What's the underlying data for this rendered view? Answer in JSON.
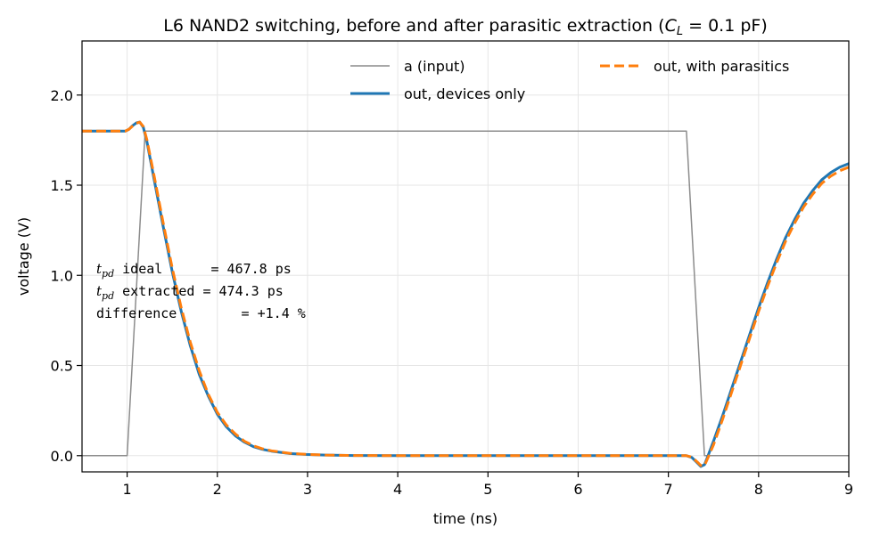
{
  "chart_data": {
    "type": "line",
    "title_main": "L6  NAND2 switching, before and after parasitic extraction (",
    "title_var": "C",
    "title_sub": "L",
    "title_tail": " = 0.1 pF)",
    "xlabel": "time (ns)",
    "ylabel": "voltage (V)",
    "xlim": [
      0.5,
      9
    ],
    "ylim": [
      -0.09,
      2.3
    ],
    "xticks": [
      1,
      2,
      3,
      4,
      5,
      6,
      7,
      8,
      9
    ],
    "yticks": [
      0.0,
      0.5,
      1.0,
      1.5,
      2.0
    ],
    "xtick_labels": [
      "1",
      "2",
      "3",
      "4",
      "5",
      "6",
      "7",
      "8",
      "9"
    ],
    "ytick_labels": [
      "0.0",
      "0.5",
      "1.0",
      "1.5",
      "2.0"
    ],
    "grid": true,
    "legend_position": "top-center",
    "series": [
      {
        "name": "a (input)",
        "color": "#8c8c8c",
        "style": "solid",
        "x": [
          0.5,
          1.0,
          1.2,
          7.2,
          7.4,
          9.0
        ],
        "y": [
          0.0,
          0.0,
          1.8,
          1.8,
          0.0,
          0.0
        ]
      },
      {
        "name": "out, devices only",
        "color": "#1f77b4",
        "style": "solid",
        "x": [
          0.5,
          0.98,
          1.02,
          1.06,
          1.1,
          1.14,
          1.18,
          1.22,
          1.3,
          1.4,
          1.5,
          1.6,
          1.7,
          1.8,
          1.9,
          2.0,
          2.1,
          2.2,
          2.3,
          2.4,
          2.5,
          2.6,
          2.8,
          3.0,
          3.2,
          3.5,
          4.0,
          5.0,
          6.0,
          7.0,
          7.2,
          7.26,
          7.32,
          7.36,
          7.4,
          7.44,
          7.5,
          7.6,
          7.7,
          7.8,
          7.9,
          8.0,
          8.1,
          8.2,
          8.3,
          8.4,
          8.5,
          8.6,
          8.7,
          8.8,
          8.9,
          9.0
        ],
        "y": [
          1.8,
          1.8,
          1.81,
          1.83,
          1.845,
          1.85,
          1.82,
          1.74,
          1.53,
          1.27,
          1.02,
          0.8,
          0.61,
          0.45,
          0.33,
          0.23,
          0.16,
          0.11,
          0.075,
          0.05,
          0.035,
          0.025,
          0.012,
          0.006,
          0.003,
          0.001,
          0.0,
          0.0,
          0.0,
          0.0,
          0.0,
          -0.01,
          -0.04,
          -0.06,
          -0.05,
          0.0,
          0.08,
          0.22,
          0.37,
          0.52,
          0.67,
          0.82,
          0.96,
          1.09,
          1.21,
          1.31,
          1.4,
          1.47,
          1.53,
          1.57,
          1.6,
          1.62
        ]
      },
      {
        "name": "out, with parasitics",
        "color": "#ff7f0e",
        "style": "dashed",
        "x": [
          0.5,
          0.98,
          1.02,
          1.06,
          1.1,
          1.14,
          1.18,
          1.22,
          1.3,
          1.4,
          1.5,
          1.6,
          1.7,
          1.8,
          1.9,
          2.0,
          2.1,
          2.2,
          2.3,
          2.4,
          2.5,
          2.6,
          2.8,
          3.0,
          3.2,
          3.5,
          4.0,
          5.0,
          6.0,
          7.0,
          7.2,
          7.26,
          7.32,
          7.36,
          7.4,
          7.44,
          7.5,
          7.6,
          7.7,
          7.8,
          7.9,
          8.0,
          8.1,
          8.2,
          8.3,
          8.4,
          8.5,
          8.6,
          8.7,
          8.8,
          8.9,
          9.0
        ],
        "y": [
          1.8,
          1.8,
          1.81,
          1.828,
          1.843,
          1.85,
          1.825,
          1.75,
          1.55,
          1.29,
          1.04,
          0.82,
          0.63,
          0.47,
          0.34,
          0.24,
          0.17,
          0.12,
          0.08,
          0.055,
          0.038,
          0.027,
          0.013,
          0.007,
          0.003,
          0.001,
          0.0,
          0.0,
          0.0,
          0.0,
          0.0,
          -0.008,
          -0.035,
          -0.055,
          -0.055,
          -0.01,
          0.06,
          0.2,
          0.35,
          0.5,
          0.65,
          0.8,
          0.94,
          1.07,
          1.19,
          1.29,
          1.38,
          1.45,
          1.51,
          1.55,
          1.58,
          1.6
        ]
      }
    ],
    "annotation": {
      "line1_var": "t",
      "line1_sub": "pd",
      "line1_text": " ideal      = 467.8 ps",
      "line2_var": "t",
      "line2_sub": "pd",
      "line2_text": " extracted = 474.3 ps",
      "line3_text": "difference        = +1.4 %"
    }
  }
}
